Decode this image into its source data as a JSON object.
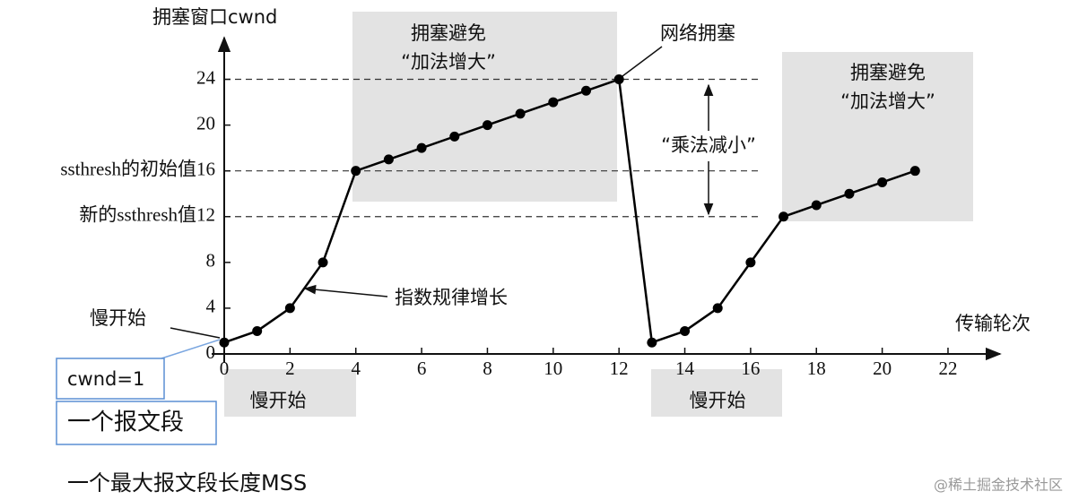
{
  "chart_data": {
    "type": "line",
    "y_label": "拥塞窗口cwnd",
    "x_label": "传输轮次",
    "x": [
      0,
      1,
      2,
      3,
      4,
      5,
      6,
      7,
      8,
      9,
      10,
      11,
      12,
      13,
      14,
      15,
      16,
      17,
      18,
      19,
      20,
      21
    ],
    "series": [
      {
        "color": "#000000",
        "values": [
          1,
          2,
          4,
          8,
          16,
          17,
          18,
          19,
          20,
          21,
          22,
          23,
          24,
          1,
          2,
          4,
          8,
          12,
          13,
          14,
          15,
          16
        ]
      }
    ],
    "xlim": [
      0,
      23.5
    ],
    "ylim": [
      0,
      27.8
    ],
    "xticks": [
      0,
      2,
      4,
      6,
      8,
      10,
      12,
      14,
      16,
      18,
      20,
      22
    ],
    "yticks": [
      0,
      4,
      8,
      {
        "value": 12,
        "label": "新的ssthresh值12"
      },
      {
        "value": 16,
        "label": "ssthresh的初始值16"
      },
      20,
      24
    ],
    "threshold_lines": [
      24,
      16,
      12
    ],
    "annotations": {
      "ca_a": "拥塞避免",
      "ca_a2": "“加法增大”",
      "ca_b": "拥塞避免",
      "ca_b2": "“加法增大”",
      "congestion": "网络拥塞",
      "decrease": "“乘法减小”",
      "exp": "指数规律增长",
      "ss_pointer": "慢开始",
      "ss_a": "慢开始",
      "ss_b": "慢开始",
      "cwnd1": "cwnd=1",
      "one_seg": "一个报文段",
      "mss": "一个最大报文段长度MSS"
    },
    "watermark": "@稀土掘金技术社区"
  }
}
